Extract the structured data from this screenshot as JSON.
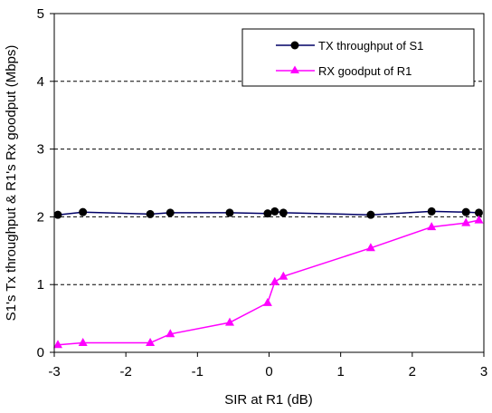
{
  "chart_data": {
    "type": "line",
    "title": "",
    "xlabel": "SIR at R1 (dB)",
    "ylabel": "S1's Tx throughput & R1's Rx goodput (Mbps)",
    "xlim": [
      -3,
      3
    ],
    "ylim": [
      0,
      5
    ],
    "x_ticks": [
      -3,
      -2,
      -1,
      0,
      1,
      2,
      3
    ],
    "y_ticks": [
      0,
      1,
      2,
      3,
      4,
      5
    ],
    "grid": "horizontal dashed",
    "legend_placement": "top-right",
    "series": [
      {
        "name": "TX throughput of S1",
        "color": "#000066",
        "marker": "circle",
        "marker_color": "#000000",
        "x": [
          -2.95,
          -2.6,
          -1.66,
          -1.38,
          -0.55,
          -0.02,
          0.08,
          0.2,
          1.42,
          2.27,
          2.75,
          2.93
        ],
        "y": [
          2.03,
          2.07,
          2.04,
          2.06,
          2.06,
          2.05,
          2.08,
          2.06,
          2.03,
          2.08,
          2.07,
          2.06
        ]
      },
      {
        "name": "RX goodput of R1",
        "color": "#ff00ff",
        "marker": "triangle",
        "marker_color": "#ff00ff",
        "x": [
          -2.95,
          -2.6,
          -1.66,
          -1.38,
          -0.55,
          -0.02,
          0.08,
          0.2,
          1.42,
          2.27,
          2.75,
          2.93
        ],
        "y": [
          0.11,
          0.14,
          0.14,
          0.27,
          0.44,
          0.73,
          1.04,
          1.12,
          1.54,
          1.85,
          1.91,
          1.95
        ]
      }
    ]
  }
}
